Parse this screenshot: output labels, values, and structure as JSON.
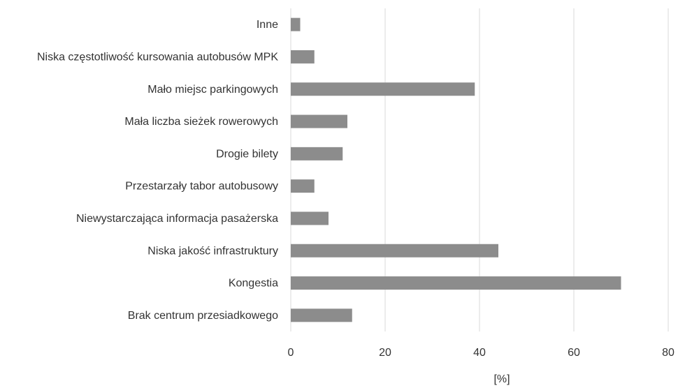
{
  "chart_data": {
    "type": "bar",
    "orientation": "horizontal",
    "categories": [
      "Inne",
      "Niska częstotliwość kursowania autobusów MPK",
      "Mało miejsc parkingowych",
      "Mała liczba sieżek rowerowych",
      "Drogie bilety",
      "Przestarzały tabor autobusowy",
      "Niewystarczająca informacja pasażerska",
      "Niska jakość infrastruktury",
      "Kongestia",
      "Brak centrum przesiadkowego"
    ],
    "values": [
      2,
      5,
      39,
      12,
      11,
      5,
      8,
      44,
      70,
      13
    ],
    "xlabel": "[%]",
    "xlim": [
      0,
      80
    ],
    "xticks": [
      "0",
      "20",
      "40",
      "60",
      "80"
    ],
    "grid": "vertical",
    "bar_color": "#8c8c8c"
  }
}
